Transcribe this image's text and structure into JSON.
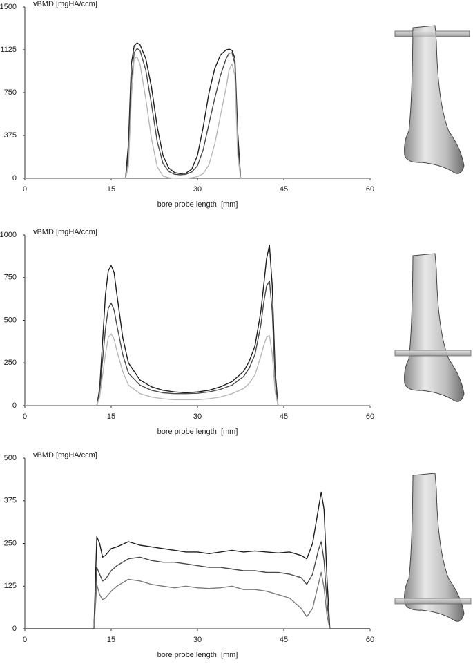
{
  "chart_data": [
    {
      "type": "line",
      "ylabel": "vBMD [mgHA/ccm]",
      "xlabel": "bore probe length  [mm]",
      "xlim": [
        0,
        60
      ],
      "xticks": [
        0,
        15,
        30,
        45,
        60
      ],
      "ylim": [
        0,
        1500
      ],
      "yticks": [
        0,
        375,
        750,
        1125,
        1500
      ],
      "x": [
        0,
        17.5,
        18,
        18.5,
        19,
        19.5,
        20,
        21,
        22,
        23,
        24,
        25,
        26,
        27,
        28,
        29,
        30,
        31,
        32,
        33,
        34,
        35,
        35.5,
        36,
        36.5,
        37,
        37.5,
        60
      ],
      "series": [
        {
          "color": "#1e1e1e",
          "values": [
            0,
            0,
            300,
            1000,
            1160,
            1185,
            1170,
            1050,
            800,
            450,
            200,
            90,
            50,
            40,
            45,
            80,
            200,
            450,
            750,
            960,
            1080,
            1125,
            1130,
            1120,
            1050,
            400,
            0,
            0
          ]
        },
        {
          "color": "#4a4a4a",
          "values": [
            0,
            0,
            200,
            850,
            1100,
            1135,
            1120,
            950,
            650,
            320,
            130,
            60,
            35,
            30,
            35,
            55,
            110,
            250,
            480,
            700,
            900,
            1050,
            1095,
            1100,
            1000,
            300,
            0,
            0
          ]
        },
        {
          "color": "#b8b8b8",
          "values": [
            0,
            0,
            100,
            700,
            1050,
            1060,
            1000,
            700,
            350,
            100,
            20,
            5,
            0,
            0,
            0,
            5,
            15,
            40,
            120,
            300,
            550,
            800,
            950,
            1000,
            900,
            200,
            0,
            0
          ]
        }
      ]
    },
    {
      "type": "line",
      "ylabel": "vBMD [mgHA/ccm]",
      "xlabel": "bore probe length  [mm]",
      "xlim": [
        0,
        60
      ],
      "xticks": [
        0,
        15,
        30,
        45,
        60
      ],
      "ylim": [
        0,
        1000
      ],
      "yticks": [
        0,
        250,
        500,
        750,
        1000
      ],
      "x": [
        0,
        12.5,
        13,
        14,
        14.5,
        15,
        15.5,
        16,
        17,
        18,
        20,
        22,
        24,
        26,
        28,
        30,
        32,
        34,
        36,
        38,
        39,
        40,
        41,
        41.5,
        42,
        42.5,
        43,
        43.5,
        44,
        60
      ],
      "series": [
        {
          "color": "#1e1e1e",
          "values": [
            0,
            0,
            100,
            650,
            790,
            820,
            780,
            650,
            400,
            250,
            150,
            110,
            90,
            80,
            75,
            80,
            90,
            110,
            140,
            200,
            260,
            350,
            550,
            700,
            860,
            940,
            700,
            200,
            0,
            0
          ]
        },
        {
          "color": "#4a4a4a",
          "values": [
            0,
            0,
            80,
            450,
            570,
            600,
            560,
            470,
            300,
            190,
            120,
            90,
            75,
            70,
            70,
            72,
            80,
            95,
            120,
            170,
            220,
            300,
            470,
            600,
            700,
            730,
            550,
            150,
            0,
            0
          ]
        },
        {
          "color": "#b8b8b8",
          "values": [
            0,
            0,
            50,
            300,
            400,
            420,
            390,
            320,
            200,
            120,
            70,
            50,
            40,
            35,
            35,
            35,
            40,
            50,
            70,
            100,
            130,
            180,
            290,
            350,
            400,
            410,
            300,
            80,
            0,
            0
          ]
        }
      ]
    },
    {
      "type": "line",
      "ylabel": "vBMD [mgHA/ccm]",
      "xlabel": "bore probe length  [mm]",
      "xlim": [
        0,
        60
      ],
      "xticks": [
        0,
        15,
        30,
        45,
        60
      ],
      "ylim": [
        0,
        500
      ],
      "yticks": [
        0,
        125,
        250,
        375,
        500
      ],
      "x": [
        0,
        12,
        12.5,
        13,
        13.5,
        14,
        15,
        16,
        18,
        20,
        22,
        24,
        26,
        28,
        30,
        32,
        34,
        36,
        38,
        40,
        42,
        44,
        46,
        48,
        49,
        50,
        51,
        51.5,
        52,
        52.5,
        53,
        60
      ],
      "series": [
        {
          "color": "#1e1e1e",
          "values": [
            0,
            0,
            270,
            250,
            210,
            215,
            235,
            240,
            255,
            245,
            240,
            235,
            230,
            225,
            225,
            220,
            225,
            230,
            225,
            228,
            225,
            222,
            225,
            215,
            205,
            250,
            350,
            400,
            350,
            150,
            0,
            0
          ]
        },
        {
          "color": "#4a4a4a",
          "values": [
            0,
            0,
            180,
            160,
            140,
            145,
            170,
            185,
            205,
            210,
            200,
            195,
            195,
            190,
            185,
            180,
            180,
            175,
            170,
            170,
            165,
            165,
            160,
            150,
            130,
            160,
            230,
            255,
            200,
            80,
            0,
            0
          ]
        },
        {
          "color": "#7a7a7a",
          "values": [
            0,
            0,
            130,
            100,
            85,
            90,
            110,
            125,
            145,
            140,
            130,
            125,
            120,
            125,
            120,
            118,
            120,
            125,
            115,
            115,
            110,
            100,
            90,
            60,
            35,
            60,
            130,
            165,
            120,
            40,
            0,
            0
          ]
        }
      ]
    }
  ]
}
